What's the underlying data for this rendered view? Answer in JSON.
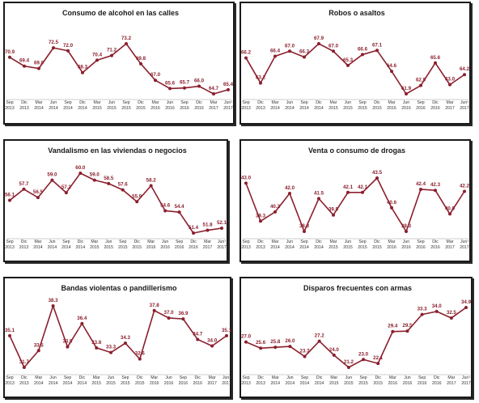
{
  "colors": {
    "line": "#8b1f2d",
    "axis": "#9a9a9a"
  },
  "x_ticks": [
    [
      "Sep",
      "2013"
    ],
    [
      "Dic",
      "2013"
    ],
    [
      "Mar",
      "2014"
    ],
    [
      "Jun",
      "2014"
    ],
    [
      "Sep",
      "2014"
    ],
    [
      "Dic",
      "2014"
    ],
    [
      "Mar",
      "2015"
    ],
    [
      "Jun",
      "2015"
    ],
    [
      "Sep",
      "2015"
    ],
    [
      "Dic",
      "2015"
    ],
    [
      "Mar",
      "2016"
    ],
    [
      "Jun",
      "2016"
    ],
    [
      "Sep",
      "2016"
    ],
    [
      "Dic",
      "2016"
    ],
    [
      "Mar",
      "2017"
    ],
    [
      "Jun¹",
      "2017"
    ]
  ],
  "chart_data": [
    {
      "type": "line",
      "title": "Consumo de alcohol en las calles",
      "values": [
        70.9,
        69.4,
        69.0,
        72.5,
        72.0,
        68.3,
        70.4,
        71.2,
        73.2,
        69.8,
        67.0,
        65.6,
        65.7,
        66.0,
        64.7,
        65.4
      ]
    },
    {
      "type": "line",
      "title": "Robos o asaltos",
      "values": [
        66.2,
        63.2,
        66.4,
        67.0,
        66.3,
        67.9,
        67.0,
        65.3,
        66.6,
        67.1,
        64.6,
        61.9,
        62.9,
        65.6,
        63.0,
        64.2
      ]
    },
    {
      "type": "line",
      "title": "Vandalismo en las viviendas o negocios",
      "values": [
        56.1,
        57.7,
        56.5,
        59.0,
        57.2,
        60.0,
        59.0,
        58.5,
        57.6,
        55.9,
        58.2,
        54.6,
        54.4,
        51.4,
        51.8,
        52.1
      ]
    },
    {
      "type": "line",
      "title": "Venta o consumo de drogas",
      "values": [
        43.0,
        39.3,
        40.2,
        42.0,
        38.3,
        41.5,
        39.9,
        42.1,
        42.1,
        43.5,
        40.6,
        38.3,
        42.4,
        42.3,
        40.0,
        42.2
      ]
    },
    {
      "type": "line",
      "title": "Bandas violentas o pandillerismo",
      "values": [
        35.1,
        31.7,
        33.5,
        38.3,
        33.9,
        36.4,
        33.8,
        33.3,
        34.3,
        32.6,
        37.8,
        37.0,
        36.9,
        34.7,
        34.0,
        35.1
      ]
    },
    {
      "type": "line",
      "title": "Disparos frecuentes con armas",
      "values": [
        27.0,
        25.6,
        25.8,
        26.0,
        23.7,
        27.2,
        24.0,
        21.2,
        23.0,
        22.1,
        29.4,
        29.5,
        33.3,
        34.0,
        32.5,
        34.9
      ]
    }
  ]
}
